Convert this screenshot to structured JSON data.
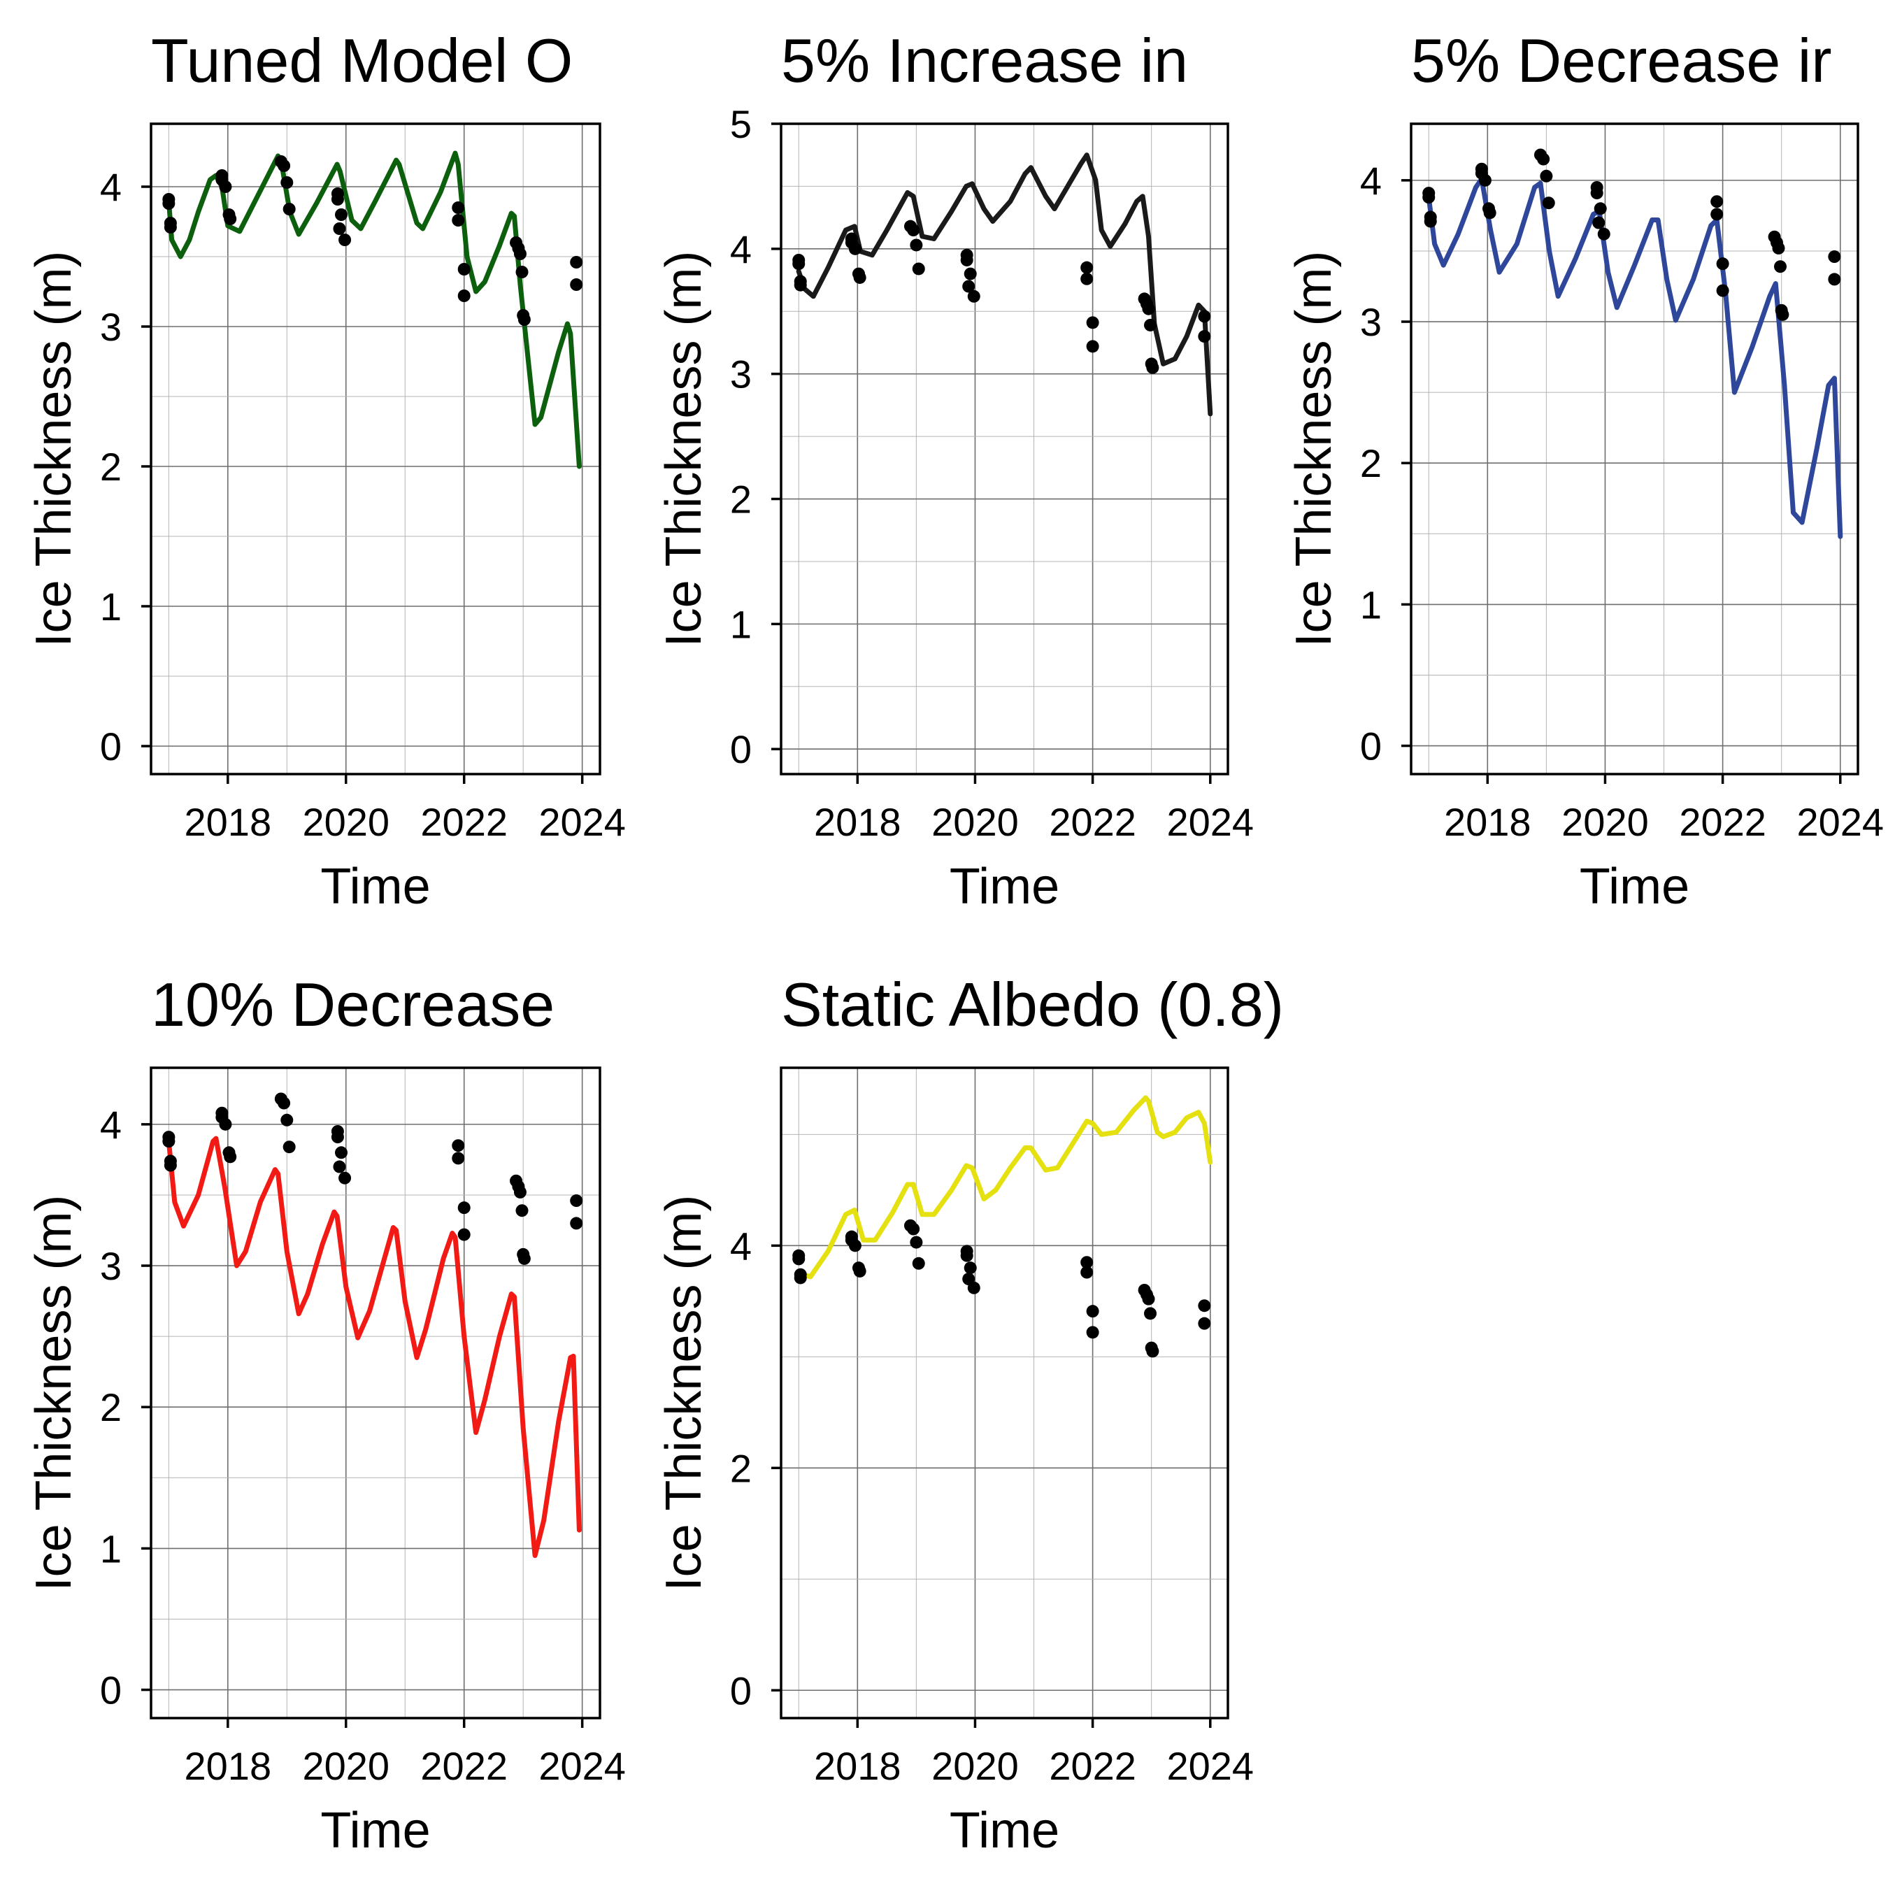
{
  "chart_data": [
    {
      "type": "line",
      "title": "Tuned Model O",
      "xlabel": "Time",
      "ylabel": "Ice Thickness (m)",
      "xticks": [
        2018,
        2020,
        2022,
        2024
      ],
      "yticks": [
        0,
        1,
        2,
        3,
        4
      ],
      "xlim": [
        2016.7,
        2024.3
      ],
      "ylim": [
        -0.2,
        4.45
      ],
      "grid": true,
      "series": [
        {
          "color": "#0c5f0c",
          "x": [
            2017.0,
            2017.05,
            2017.2,
            2017.35,
            2017.5,
            2017.7,
            2017.8,
            2017.9,
            2018.0,
            2018.2,
            2018.5,
            2018.85,
            2018.9,
            2019.05,
            2019.2,
            2019.5,
            2019.85,
            2019.9,
            2020.1,
            2020.25,
            2020.5,
            2020.85,
            2020.9,
            2021.2,
            2021.3,
            2021.6,
            2021.85,
            2021.9,
            2022.05,
            2022.2,
            2022.35,
            2022.6,
            2022.8,
            2022.85,
            2022.95,
            2023.2,
            2023.3,
            2023.6,
            2023.75,
            2023.8,
            2023.95
          ],
          "y": [
            3.9,
            3.62,
            3.5,
            3.62,
            3.82,
            4.05,
            4.08,
            4.0,
            3.72,
            3.68,
            3.93,
            4.22,
            4.19,
            3.82,
            3.66,
            3.88,
            4.16,
            4.11,
            3.76,
            3.7,
            3.9,
            4.19,
            4.16,
            3.74,
            3.7,
            3.96,
            4.24,
            4.16,
            3.5,
            3.25,
            3.32,
            3.58,
            3.81,
            3.79,
            3.3,
            2.3,
            2.35,
            2.82,
            3.02,
            2.95,
            2.0
          ]
        }
      ],
      "observations": {
        "x": [
          2017.0,
          2017.0,
          2017.03,
          2017.03,
          2017.9,
          2017.9,
          2017.96,
          2018.02,
          2018.04,
          2018.9,
          2018.95,
          2019.0,
          2019.04,
          2019.86,
          2019.86,
          2019.89,
          2019.92,
          2019.98,
          2021.9,
          2021.9,
          2022.0,
          2022.0,
          2022.88,
          2022.92,
          2022.95,
          2022.98,
          2023.0,
          2023.02,
          2023.9,
          2023.9
        ],
        "y": [
          3.91,
          3.88,
          3.74,
          3.71,
          4.08,
          4.05,
          4.0,
          3.8,
          3.77,
          4.18,
          4.15,
          4.03,
          3.84,
          3.95,
          3.91,
          3.7,
          3.8,
          3.62,
          3.85,
          3.76,
          3.41,
          3.22,
          3.6,
          3.56,
          3.52,
          3.39,
          3.08,
          3.05,
          3.46,
          3.3
        ]
      }
    },
    {
      "type": "line",
      "title": "5% Increase in",
      "xlabel": "Time",
      "ylabel": "Ice Thickness (m)",
      "xticks": [
        2018,
        2020,
        2022,
        2024
      ],
      "yticks": [
        0,
        1,
        2,
        3,
        4,
        5
      ],
      "xlim": [
        2016.7,
        2024.3
      ],
      "ylim": [
        -0.2,
        5.0
      ],
      "grid": true,
      "series": [
        {
          "color": "#1a1a1a",
          "x": [
            2017.0,
            2017.1,
            2017.25,
            2017.5,
            2017.8,
            2017.95,
            2018.05,
            2018.25,
            2018.5,
            2018.85,
            2018.95,
            2019.1,
            2019.3,
            2019.6,
            2019.85,
            2019.95,
            2020.15,
            2020.3,
            2020.6,
            2020.85,
            2020.95,
            2021.2,
            2021.35,
            2021.6,
            2021.8,
            2021.9,
            2022.05,
            2022.15,
            2022.3,
            2022.55,
            2022.75,
            2022.85,
            2022.95,
            2023.05,
            2023.2,
            2023.4,
            2023.6,
            2023.8,
            2023.9,
            2024.0
          ],
          "y": [
            3.82,
            3.68,
            3.62,
            3.85,
            4.15,
            4.18,
            3.98,
            3.95,
            4.15,
            4.45,
            4.42,
            4.1,
            4.08,
            4.3,
            4.5,
            4.52,
            4.32,
            4.22,
            4.38,
            4.6,
            4.65,
            4.42,
            4.32,
            4.52,
            4.68,
            4.75,
            4.55,
            4.15,
            4.02,
            4.2,
            4.38,
            4.42,
            4.1,
            3.4,
            3.08,
            3.12,
            3.3,
            3.55,
            3.5,
            2.68
          ]
        }
      ],
      "observations": {
        "x": [
          2017.0,
          2017.0,
          2017.03,
          2017.03,
          2017.9,
          2017.9,
          2017.96,
          2018.02,
          2018.04,
          2018.9,
          2018.95,
          2019.0,
          2019.04,
          2019.86,
          2019.86,
          2019.89,
          2019.92,
          2019.98,
          2021.9,
          2021.9,
          2022.0,
          2022.0,
          2022.88,
          2022.92,
          2022.95,
          2022.98,
          2023.0,
          2023.02,
          2023.9,
          2023.9
        ],
        "y": [
          3.91,
          3.88,
          3.74,
          3.71,
          4.08,
          4.05,
          4.0,
          3.8,
          3.77,
          4.18,
          4.15,
          4.03,
          3.84,
          3.95,
          3.91,
          3.7,
          3.8,
          3.62,
          3.85,
          3.76,
          3.41,
          3.22,
          3.6,
          3.56,
          3.52,
          3.39,
          3.08,
          3.05,
          3.46,
          3.3
        ]
      }
    },
    {
      "type": "line",
      "title": "5% Decrease ir",
      "xlabel": "Time",
      "ylabel": "Ice Thickness (m)",
      "xticks": [
        2018,
        2020,
        2022,
        2024
      ],
      "yticks": [
        0,
        1,
        2,
        3,
        4
      ],
      "xlim": [
        2016.7,
        2024.3
      ],
      "ylim": [
        -0.2,
        4.4
      ],
      "grid": true,
      "series": [
        {
          "color": "#2e479a",
          "x": [
            2017.0,
            2017.1,
            2017.25,
            2017.5,
            2017.8,
            2017.9,
            2018.05,
            2018.2,
            2018.5,
            2018.8,
            2018.9,
            2019.05,
            2019.2,
            2019.5,
            2019.8,
            2019.9,
            2020.05,
            2020.2,
            2020.5,
            2020.8,
            2020.9,
            2021.05,
            2021.2,
            2021.5,
            2021.8,
            2021.9,
            2022.05,
            2022.2,
            2022.5,
            2022.8,
            2022.9,
            2023.05,
            2023.2,
            2023.35,
            2023.6,
            2023.8,
            2023.9,
            2024.0
          ],
          "y": [
            3.88,
            3.55,
            3.4,
            3.62,
            3.95,
            4.01,
            3.65,
            3.35,
            3.55,
            3.95,
            3.98,
            3.5,
            3.18,
            3.45,
            3.76,
            3.78,
            3.35,
            3.1,
            3.4,
            3.72,
            3.72,
            3.3,
            3.01,
            3.3,
            3.68,
            3.72,
            3.2,
            2.5,
            2.82,
            3.18,
            3.27,
            2.55,
            1.65,
            1.58,
            2.1,
            2.55,
            2.6,
            1.48
          ]
        }
      ],
      "observations": {
        "x": [
          2017.0,
          2017.0,
          2017.03,
          2017.03,
          2017.9,
          2017.9,
          2017.96,
          2018.02,
          2018.04,
          2018.9,
          2018.95,
          2019.0,
          2019.04,
          2019.86,
          2019.86,
          2019.89,
          2019.92,
          2019.98,
          2021.9,
          2021.9,
          2022.0,
          2022.0,
          2022.88,
          2022.92,
          2022.95,
          2022.98,
          2023.0,
          2023.02,
          2023.9,
          2023.9
        ],
        "y": [
          3.91,
          3.88,
          3.74,
          3.71,
          4.08,
          4.05,
          4.0,
          3.8,
          3.77,
          4.18,
          4.15,
          4.03,
          3.84,
          3.95,
          3.91,
          3.7,
          3.8,
          3.62,
          3.85,
          3.76,
          3.41,
          3.22,
          3.6,
          3.56,
          3.52,
          3.39,
          3.08,
          3.05,
          3.46,
          3.3
        ]
      }
    },
    {
      "type": "line",
      "title": "10% Decrease",
      "xlabel": "Time",
      "ylabel": "Ice Thickness (m)",
      "xticks": [
        2018,
        2020,
        2022,
        2024
      ],
      "yticks": [
        0,
        1,
        2,
        3,
        4
      ],
      "xlim": [
        2016.7,
        2024.3
      ],
      "ylim": [
        -0.2,
        4.4
      ],
      "grid": true,
      "series": [
        {
          "color": "#f21a14",
          "x": [
            2017.0,
            2017.1,
            2017.25,
            2017.5,
            2017.75,
            2017.8,
            2017.95,
            2018.15,
            2018.3,
            2018.55,
            2018.8,
            2018.85,
            2019.0,
            2019.2,
            2019.35,
            2019.6,
            2019.8,
            2019.85,
            2020.0,
            2020.2,
            2020.4,
            2020.65,
            2020.8,
            2020.85,
            2021.0,
            2021.2,
            2021.35,
            2021.65,
            2021.8,
            2021.85,
            2022.0,
            2022.2,
            2022.35,
            2022.6,
            2022.8,
            2022.85,
            2023.0,
            2023.2,
            2023.35,
            2023.6,
            2023.8,
            2023.85,
            2023.95
          ],
          "y": [
            3.88,
            3.45,
            3.28,
            3.5,
            3.88,
            3.9,
            3.55,
            3.0,
            3.1,
            3.45,
            3.68,
            3.65,
            3.1,
            2.66,
            2.8,
            3.15,
            3.38,
            3.35,
            2.85,
            2.49,
            2.68,
            3.05,
            3.27,
            3.25,
            2.75,
            2.35,
            2.55,
            3.05,
            3.23,
            3.2,
            2.5,
            1.82,
            2.05,
            2.5,
            2.8,
            2.78,
            1.85,
            0.95,
            1.2,
            1.9,
            2.35,
            2.36,
            1.13
          ]
        }
      ],
      "observations": {
        "x": [
          2017.0,
          2017.0,
          2017.03,
          2017.03,
          2017.9,
          2017.9,
          2017.96,
          2018.02,
          2018.04,
          2018.9,
          2018.95,
          2019.0,
          2019.04,
          2019.86,
          2019.86,
          2019.89,
          2019.92,
          2019.98,
          2021.9,
          2021.9,
          2022.0,
          2022.0,
          2022.88,
          2022.92,
          2022.95,
          2022.98,
          2023.0,
          2023.02,
          2023.9,
          2023.9
        ],
        "y": [
          3.91,
          3.88,
          3.74,
          3.71,
          4.08,
          4.05,
          4.0,
          3.8,
          3.77,
          4.18,
          4.15,
          4.03,
          3.84,
          3.95,
          3.91,
          3.7,
          3.8,
          3.62,
          3.85,
          3.76,
          3.41,
          3.22,
          3.6,
          3.56,
          3.52,
          3.39,
          3.08,
          3.05,
          3.46,
          3.3
        ]
      }
    },
    {
      "type": "line",
      "title": "Static Albedo (0.8)",
      "xlabel": "Time",
      "ylabel": "Ice Thickness (m)",
      "xticks": [
        2018,
        2020,
        2022,
        2024
      ],
      "yticks": [
        0,
        2,
        4
      ],
      "xlim": [
        2016.7,
        2024.3
      ],
      "ylim": [
        -0.25,
        5.6
      ],
      "grid": true,
      "series": [
        {
          "color": "#e5e010",
          "x": [
            2017.0,
            2017.2,
            2017.5,
            2017.8,
            2017.95,
            2018.1,
            2018.3,
            2018.6,
            2018.85,
            2018.95,
            2019.1,
            2019.3,
            2019.6,
            2019.85,
            2019.95,
            2020.15,
            2020.35,
            2020.6,
            2020.85,
            2020.95,
            2021.2,
            2021.4,
            2021.7,
            2021.9,
            2022.0,
            2022.15,
            2022.4,
            2022.7,
            2022.9,
            2022.95,
            2023.1,
            2023.2,
            2023.4,
            2023.6,
            2023.8,
            2023.9,
            2024.0
          ],
          "y": [
            3.75,
            3.72,
            3.95,
            4.28,
            4.32,
            4.05,
            4.05,
            4.3,
            4.55,
            4.55,
            4.28,
            4.28,
            4.5,
            4.72,
            4.7,
            4.42,
            4.5,
            4.7,
            4.88,
            4.88,
            4.68,
            4.7,
            4.95,
            5.12,
            5.1,
            5.0,
            5.02,
            5.22,
            5.33,
            5.3,
            5.02,
            4.98,
            5.02,
            5.15,
            5.2,
            5.1,
            4.75
          ]
        }
      ],
      "observations": {
        "x": [
          2017.0,
          2017.0,
          2017.03,
          2017.03,
          2017.9,
          2017.9,
          2017.96,
          2018.02,
          2018.04,
          2018.9,
          2018.95,
          2019.0,
          2019.04,
          2019.86,
          2019.86,
          2019.89,
          2019.92,
          2019.98,
          2021.9,
          2021.9,
          2022.0,
          2022.0,
          2022.88,
          2022.92,
          2022.95,
          2022.98,
          2023.0,
          2023.02,
          2023.9,
          2023.9
        ],
        "y": [
          3.91,
          3.88,
          3.74,
          3.71,
          4.08,
          4.05,
          4.0,
          3.8,
          3.77,
          4.18,
          4.15,
          4.03,
          3.84,
          3.95,
          3.91,
          3.7,
          3.8,
          3.62,
          3.85,
          3.76,
          3.41,
          3.22,
          3.6,
          3.56,
          3.52,
          3.39,
          3.08,
          3.05,
          3.46,
          3.3
        ]
      }
    }
  ]
}
